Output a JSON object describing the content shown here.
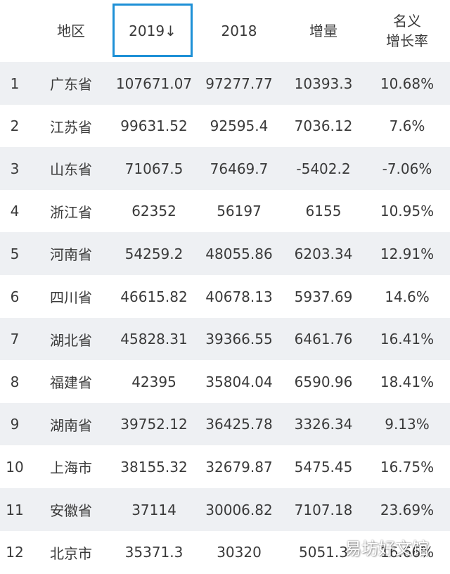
{
  "header": {
    "region": "地区",
    "y2019": "2019↓",
    "y2018": "2018",
    "delta": "增量",
    "rate_line1": "名义",
    "rate_line2": "增长率"
  },
  "rows": [
    {
      "rank": "1",
      "region": "广东省",
      "y2019": "107671.07",
      "y2018": "97277.77",
      "delta": "10393.3",
      "rate": "10.68%"
    },
    {
      "rank": "2",
      "region": "江苏省",
      "y2019": "99631.52",
      "y2018": "92595.4",
      "delta": "7036.12",
      "rate": "7.6%"
    },
    {
      "rank": "3",
      "region": "山东省",
      "y2019": "71067.5",
      "y2018": "76469.7",
      "delta": "-5402.2",
      "rate": "-7.06%"
    },
    {
      "rank": "4",
      "region": "浙江省",
      "y2019": "62352",
      "y2018": "56197",
      "delta": "6155",
      "rate": "10.95%"
    },
    {
      "rank": "5",
      "region": "河南省",
      "y2019": "54259.2",
      "y2018": "48055.86",
      "delta": "6203.34",
      "rate": "12.91%"
    },
    {
      "rank": "6",
      "region": "四川省",
      "y2019": "46615.82",
      "y2018": "40678.13",
      "delta": "5937.69",
      "rate": "14.6%"
    },
    {
      "rank": "7",
      "region": "湖北省",
      "y2019": "45828.31",
      "y2018": "39366.55",
      "delta": "6461.76",
      "rate": "16.41%"
    },
    {
      "rank": "8",
      "region": "福建省",
      "y2019": "42395",
      "y2018": "35804.04",
      "delta": "6590.96",
      "rate": "18.41%"
    },
    {
      "rank": "9",
      "region": "湖南省",
      "y2019": "39752.12",
      "y2018": "36425.78",
      "delta": "3326.34",
      "rate": "9.13%"
    },
    {
      "rank": "10",
      "region": "上海市",
      "y2019": "38155.32",
      "y2018": "32679.87",
      "delta": "5475.45",
      "rate": "16.75%"
    },
    {
      "rank": "11",
      "region": "安徽省",
      "y2019": "37114",
      "y2018": "30006.82",
      "delta": "7107.18",
      "rate": "23.69%"
    },
    {
      "rank": "12",
      "region": "北京市",
      "y2019": "35371.3",
      "y2018": "30320",
      "delta": "5051.3",
      "rate": "16.66%"
    }
  ],
  "watermark": "易坊好文馆",
  "colors": {
    "sort_highlight": "#1e90d6",
    "row_stripe": "#eef0f3",
    "text": "#3a3a3a"
  }
}
